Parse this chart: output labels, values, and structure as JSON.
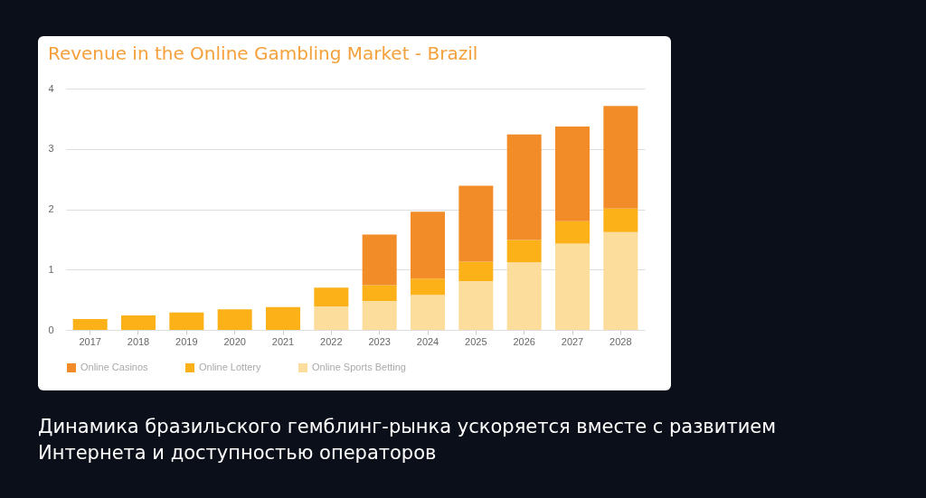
{
  "chart_data": {
    "type": "bar",
    "title": "Revenue in the Online Gambling Market - Brazil",
    "categories": [
      "2017",
      "2018",
      "2019",
      "2020",
      "2021",
      "2022",
      "2023",
      "2024",
      "2025",
      "2026",
      "2027",
      "2028"
    ],
    "stacked": true,
    "series": [
      {
        "name": "Online Sports Betting",
        "color": "#fddd9b",
        "values": [
          0,
          0,
          0,
          0,
          0,
          0.39,
          0.48,
          0.58,
          0.81,
          1.12,
          1.43,
          1.62
        ]
      },
      {
        "name": "Online Lottery",
        "color": "#fbb117",
        "values": [
          0.18,
          0.24,
          0.29,
          0.34,
          0.38,
          0.31,
          0.26,
          0.27,
          0.32,
          0.37,
          0.37,
          0.39
        ]
      },
      {
        "name": "Online Casinos",
        "color": "#f28c28",
        "values": [
          0,
          0,
          0,
          0,
          0,
          0,
          0.84,
          1.11,
          1.26,
          1.75,
          1.57,
          1.7
        ]
      }
    ],
    "ylim": [
      0,
      4
    ],
    "yticks": [
      0,
      1,
      2,
      3,
      4
    ],
    "grid": "y",
    "legend": "bottom",
    "annotations": [
      "Динамика бразильского гемблинг-рынка ускоряется вместе с развитием Интернета и доступностью операторов"
    ]
  }
}
